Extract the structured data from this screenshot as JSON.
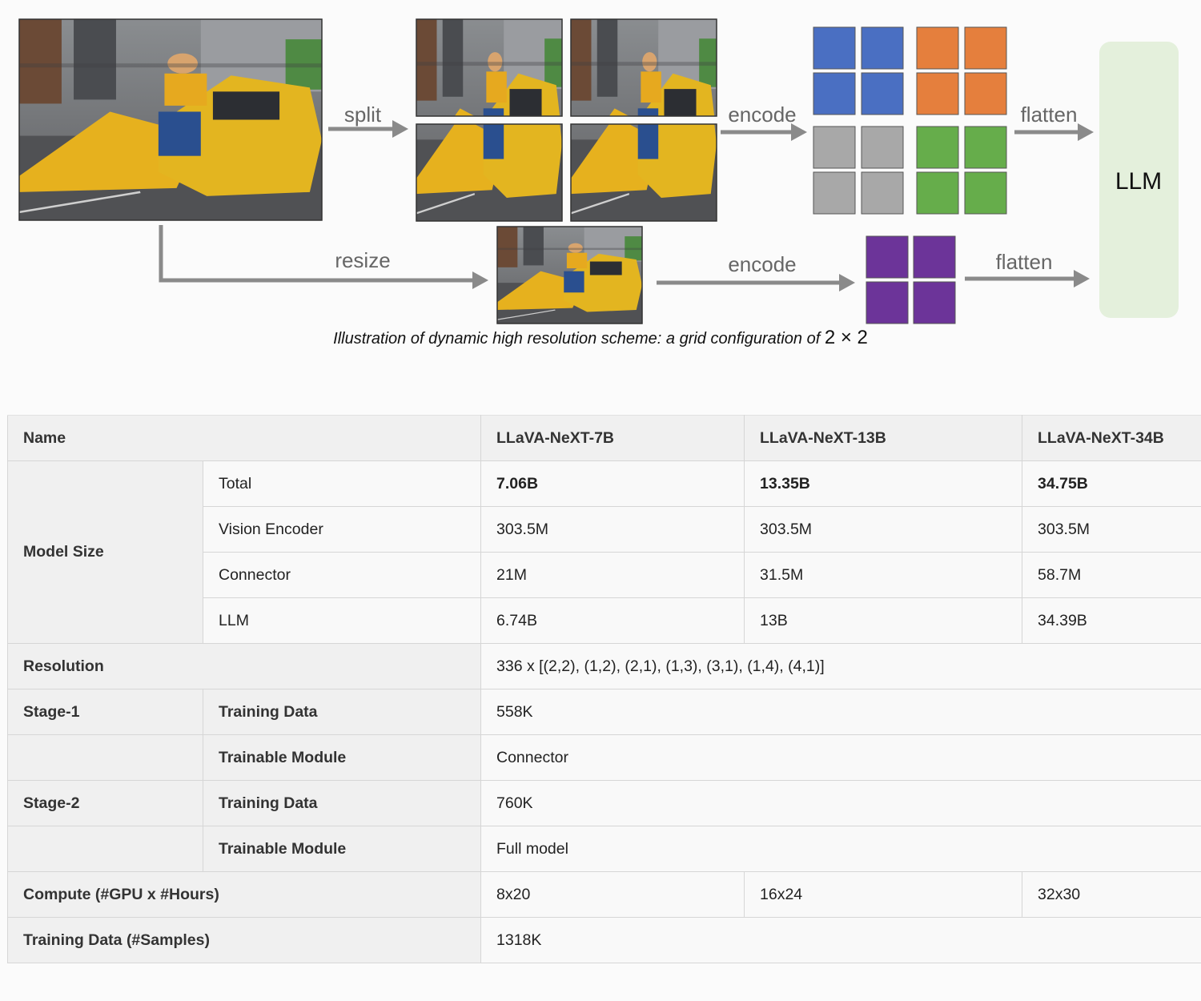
{
  "diagram": {
    "labels": {
      "split": "split",
      "encode_top": "encode",
      "flatten_top": "flatten",
      "resize": "resize",
      "encode_bottom": "encode",
      "flatten_bottom": "flatten",
      "llm": "LLM"
    },
    "caption_text": "Illustration of dynamic high resolution scheme: a grid configuration of",
    "caption_math": "2 × 2",
    "colors": {
      "blue": "#4a6fc2",
      "orange": "#e57f3d",
      "gray": "#a8a8a8",
      "green": "#66ad4b",
      "purple": "#6c3499",
      "llm_box": "#e4f0dc",
      "arrow": "#8a8a8a"
    }
  },
  "table": {
    "header": {
      "name": "Name",
      "col_7b": "LLaVA-NeXT-7B",
      "col_13b": "LLaVA-NeXT-13B",
      "col_34b": "LLaVA-NeXT-34B"
    },
    "model_size": {
      "label": "Model Size",
      "total": {
        "label": "Total",
        "v7": "7.06B",
        "v13": "13.35B",
        "v34": "34.75B"
      },
      "vision_encoder": {
        "label": "Vision Encoder",
        "v7": "303.5M",
        "v13": "303.5M",
        "v34": "303.5M"
      },
      "connector": {
        "label": "Connector",
        "v7": "21M",
        "v13": "31.5M",
        "v34": "58.7M"
      },
      "llm": {
        "label": "LLM",
        "v7": "6.74B",
        "v13": "13B",
        "v34": "34.39B"
      }
    },
    "resolution": {
      "label": "Resolution",
      "value": "336 x [(2,2), (1,2), (2,1), (1,3), (3,1), (1,4), (4,1)]"
    },
    "stage1": {
      "label": "Stage-1",
      "training_data_label": "Training Data",
      "training_data": "558K",
      "trainable_module_label": "Trainable Module",
      "trainable_module": "Connector"
    },
    "stage2": {
      "label": "Stage-2",
      "training_data_label": "Training Data",
      "training_data": "760K",
      "trainable_module_label": "Trainable Module",
      "trainable_module": "Full model"
    },
    "compute": {
      "label": "Compute (#GPU x #Hours)",
      "v7": "8x20",
      "v13": "16x24",
      "v34": "32x30"
    },
    "training_samples": {
      "label": "Training Data (#Samples)",
      "value": "1318K"
    }
  }
}
